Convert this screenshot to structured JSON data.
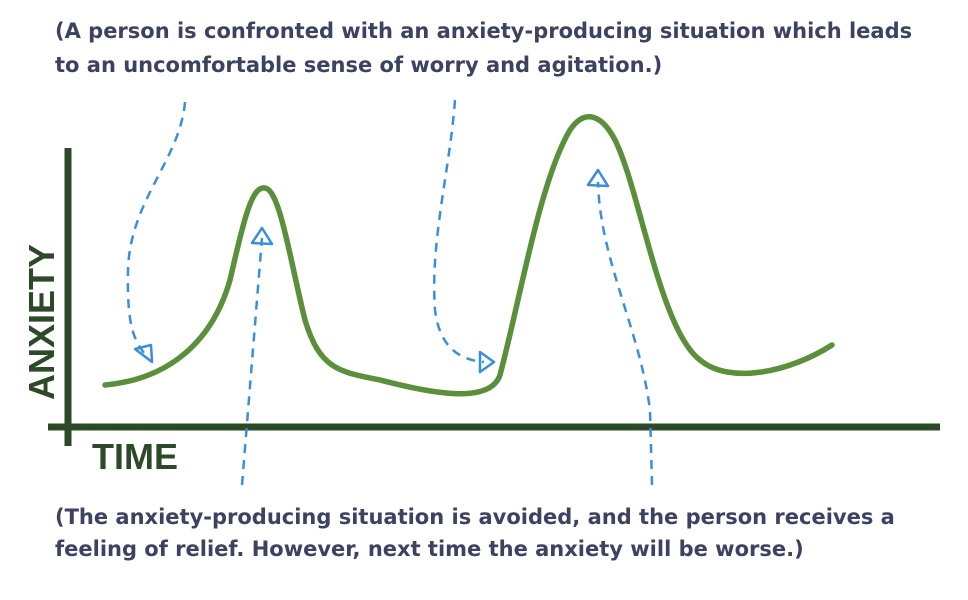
{
  "top_caption": {
    "lines": [
      "(A person is confronted with an anxiety-producing situation which leads",
      "to an uncomfortable sense of worry and agitation.)"
    ]
  },
  "axes": {
    "y_label": "ANXIETY",
    "x_label": "TIME"
  },
  "bottom_caption": {
    "lines": [
      "(The anxiety-producing situation is avoided, and the person receives a",
      "feeling of relief. However, next time the anxiety will be worse.)"
    ]
  }
}
